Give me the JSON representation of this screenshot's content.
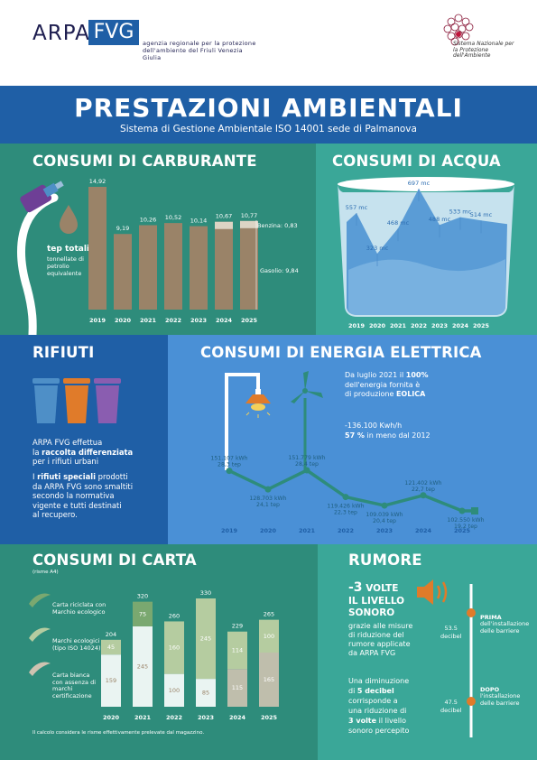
{
  "header": {
    "logo_arpa": "ARPA",
    "logo_fvg": "FVG",
    "logo_sub": "agenzia regionale per la protezione dell'ambiente del Friuli Venezia Giulia",
    "snpa_text": "Sistema Nazionale per la Protezione dell'Ambiente"
  },
  "title": {
    "main": "PRESTAZIONI AMBIENTALI",
    "subtitle": "Sistema di Gestione Ambientale ISO 14001 sede di Palmanova"
  },
  "carburante": {
    "title": "CONSUMI DI CARBURANTE",
    "legend_title": "tep totali",
    "legend_sub": "tonnellate di petrolio equivalente",
    "benzina_label": "Benzina: 0,83",
    "gasolio_label": "Gasolio: 9,84"
  },
  "acqua": {
    "title": "CONSUMI DI ACQUA"
  },
  "rifiuti": {
    "title": "RIFIUTI",
    "p1_a": "ARPA FVG effettua",
    "p1_b": "la ",
    "p1_bold": "raccolta differenziata",
    "p1_c": "per i rifiuti urbani",
    "p2_a": "I ",
    "p2_bold": "rifiuti speciali",
    "p2_b": " prodotti",
    "p2_c": "da ARPA FVG sono smaltiti",
    "p2_d": "secondo la normativa",
    "p2_e": "vigente e tutti destinati",
    "p2_f": "al recupero."
  },
  "energia": {
    "title": "CONSUMI DI ENERGIA ELETTRICA",
    "note_a": "Da luglio 2021 il ",
    "note_pct": "100%",
    "note_b": "dell'energia fornita è",
    "note_c": "di produzione ",
    "note_eolica": "EOLICA",
    "saving_a": "-136.100 Kwh/h",
    "saving_pct": "57 %",
    "saving_b": " in meno dal 2012"
  },
  "carta": {
    "title": "CONSUMI DI CARTA",
    "subtitle": "(risme A4)",
    "legend_riciclata": "Carta riciclata con Marchio ecologico",
    "legend_marchi": "Marchi ecologici (tipo ISO 14024)",
    "legend_bianca": "Carta bianca con assenza di marchi certificazione",
    "footnote": "Il calcolo considera le risme effettivamente prelevate dal magazzino."
  },
  "rumore": {
    "title": "RUMORE",
    "big_a": "-3",
    "big_b": " VOLTE",
    "big_c": "IL LIVELLO",
    "big_d": "SONORO",
    "l1": "grazie alle misure",
    "l2": "di riduzione del",
    "l3": "rumore applicate",
    "l4": "da ARPA FVG",
    "m1": "Una diminuzione",
    "m2a": "di ",
    "m2b": "5 decibel",
    "m3": "corrisponde a",
    "m4": "una riduzione di",
    "m5a": "3 volte",
    "m5b": " il livello",
    "m6": "sonoro percepito",
    "prima_label": "PRIMA",
    "prima_desc_1": "dell'installazione",
    "prima_desc_2": "delle barriere",
    "prima_value": "53.5",
    "prima_unit": "decibel",
    "dopo_label": "DOPO",
    "dopo_desc_1": "l'installazione",
    "dopo_desc_2": "delle barriere",
    "dopo_value": "47.5",
    "dopo_unit": "decibel"
  },
  "chart_data": [
    {
      "type": "bar",
      "id": "carburante",
      "categories": [
        "2019",
        "2020",
        "2021",
        "2022",
        "2023",
        "2024",
        "2025"
      ],
      "values": [
        14.92,
        9.19,
        10.26,
        10.52,
        10.14,
        10.67,
        10.77
      ],
      "value_labels": [
        "14,92",
        "9,19",
        "10,26",
        "10,52",
        "10,14",
        "10,67",
        "10,77"
      ],
      "ylim": [
        0,
        16
      ],
      "breakdown_2025": {
        "benzina": 0.83,
        "gasolio": 9.84
      },
      "colors": {
        "bar": "#9a8368",
        "bar_light": "#dcd4c4"
      }
    },
    {
      "type": "line",
      "id": "acqua",
      "categories": [
        "2019",
        "2020",
        "2021",
        "2022",
        "2023",
        "2024",
        "2025"
      ],
      "values": [
        557,
        323,
        468,
        697,
        488,
        533,
        514
      ],
      "value_labels": [
        "557 mc",
        "323 mc",
        "468 mc",
        "697 mc",
        "488 mc",
        "533 mc",
        "514 mc"
      ],
      "ylim": [
        250,
        750
      ],
      "colors": {
        "water": "#7fb6e2",
        "water_dark": "#5a9cd6"
      }
    },
    {
      "type": "line",
      "id": "energia",
      "categories": [
        "2019",
        "2020",
        "2021",
        "2022",
        "2023",
        "2024",
        "2025"
      ],
      "kwh_labels": [
        "151.107 kWh",
        "128.703 kWh",
        "151.779 kWh",
        "119.426 kWh",
        "109.039 kWh",
        "121.402 kWh",
        "102.550 kWh"
      ],
      "tep_labels": [
        "28,3 tep",
        "24,1 tep",
        "28,4 tep",
        "22,3 tep",
        "20,4 tep",
        "22,7 tep",
        "19,2 tep"
      ],
      "values": [
        151107,
        128703,
        151779,
        119426,
        109039,
        121402,
        102550
      ],
      "ylim": [
        90000,
        165000
      ],
      "colors": {
        "line": "#2e8c7b"
      }
    },
    {
      "type": "bar",
      "id": "carta",
      "stacked": true,
      "categories": [
        "2020",
        "2021",
        "2022",
        "2023",
        "2024",
        "2025"
      ],
      "totals": [
        204,
        320,
        260,
        330,
        229,
        265
      ],
      "series": [
        {
          "name": "Carta bianca con assenza di marchi certificazione",
          "values": [
            159,
            245,
            100,
            85,
            115,
            165
          ]
        },
        {
          "name": "Marchi ecologici (tipo ISO 14024)",
          "values": [
            45,
            0,
            160,
            245,
            114,
            100
          ]
        },
        {
          "name": "Carta riciclata con Marchio ecologico",
          "values": [
            0,
            75,
            0,
            0,
            0,
            0
          ]
        }
      ],
      "ylim": [
        0,
        340
      ],
      "colors": {
        "bianca": "#ffffff",
        "marchi": "#b5cca0",
        "riciclata": "#7aa870",
        "bianca_light": "#cfc3b1"
      }
    }
  ]
}
